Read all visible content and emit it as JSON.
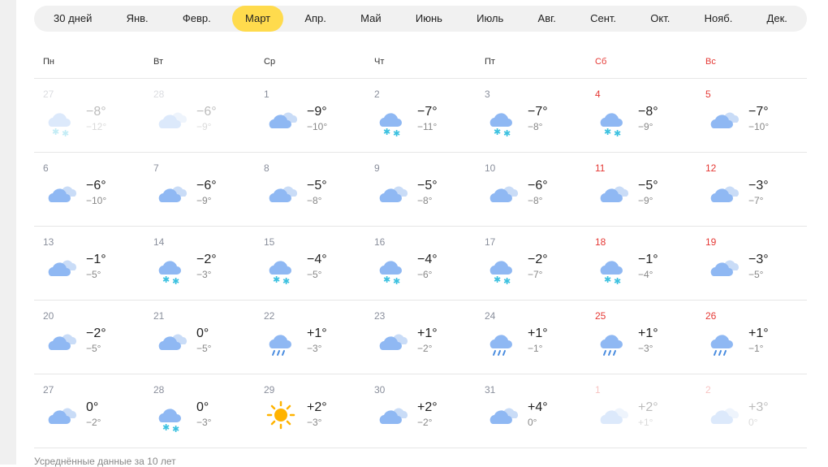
{
  "tabs": [
    "30 дней",
    "Янв.",
    "Февр.",
    "Март",
    "Апр.",
    "Май",
    "Июнь",
    "Июль",
    "Авг.",
    "Сент.",
    "Окт.",
    "Нояб.",
    "Дек."
  ],
  "active_tab": "Март",
  "colors": {
    "accent": "#ffdb4d",
    "weekend": "#e53935"
  },
  "weekdays": [
    "Пн",
    "Вт",
    "Ср",
    "Чт",
    "Пт",
    "Сб",
    "Вс"
  ],
  "weeks": [
    [
      {
        "d": "27",
        "i": "snow",
        "hi": "−8°",
        "lo": "−12°",
        "f": true
      },
      {
        "d": "28",
        "i": "cloudy",
        "hi": "−6°",
        "lo": "−9°",
        "f": true
      },
      {
        "d": "1",
        "i": "cloudy",
        "hi": "−9°",
        "lo": "−10°"
      },
      {
        "d": "2",
        "i": "snow",
        "hi": "−7°",
        "lo": "−11°"
      },
      {
        "d": "3",
        "i": "snow",
        "hi": "−7°",
        "lo": "−8°"
      },
      {
        "d": "4",
        "i": "snow",
        "hi": "−8°",
        "lo": "−9°"
      },
      {
        "d": "5",
        "i": "cloudy",
        "hi": "−7°",
        "lo": "−10°"
      }
    ],
    [
      {
        "d": "6",
        "i": "cloudy",
        "hi": "−6°",
        "lo": "−10°"
      },
      {
        "d": "7",
        "i": "cloudy",
        "hi": "−6°",
        "lo": "−9°"
      },
      {
        "d": "8",
        "i": "cloudy",
        "hi": "−5°",
        "lo": "−8°"
      },
      {
        "d": "9",
        "i": "cloudy",
        "hi": "−5°",
        "lo": "−8°"
      },
      {
        "d": "10",
        "i": "cloudy",
        "hi": "−6°",
        "lo": "−8°"
      },
      {
        "d": "11",
        "i": "cloudy",
        "hi": "−5°",
        "lo": "−9°"
      },
      {
        "d": "12",
        "i": "cloudy",
        "hi": "−3°",
        "lo": "−7°"
      }
    ],
    [
      {
        "d": "13",
        "i": "cloudy",
        "hi": "−1°",
        "lo": "−5°"
      },
      {
        "d": "14",
        "i": "snow",
        "hi": "−2°",
        "lo": "−3°"
      },
      {
        "d": "15",
        "i": "snow",
        "hi": "−4°",
        "lo": "−5°"
      },
      {
        "d": "16",
        "i": "snow",
        "hi": "−4°",
        "lo": "−6°"
      },
      {
        "d": "17",
        "i": "snow",
        "hi": "−2°",
        "lo": "−7°"
      },
      {
        "d": "18",
        "i": "snow",
        "hi": "−1°",
        "lo": "−4°"
      },
      {
        "d": "19",
        "i": "cloudy",
        "hi": "−3°",
        "lo": "−5°"
      }
    ],
    [
      {
        "d": "20",
        "i": "cloudy",
        "hi": "−2°",
        "lo": "−5°"
      },
      {
        "d": "21",
        "i": "cloudy",
        "hi": "0°",
        "lo": "−5°"
      },
      {
        "d": "22",
        "i": "rain",
        "hi": "+1°",
        "lo": "−3°"
      },
      {
        "d": "23",
        "i": "cloudy",
        "hi": "+1°",
        "lo": "−2°"
      },
      {
        "d": "24",
        "i": "rain",
        "hi": "+1°",
        "lo": "−1°"
      },
      {
        "d": "25",
        "i": "rain",
        "hi": "+1°",
        "lo": "−3°"
      },
      {
        "d": "26",
        "i": "rain",
        "hi": "+1°",
        "lo": "−1°"
      }
    ],
    [
      {
        "d": "27",
        "i": "cloudy",
        "hi": "0°",
        "lo": "−2°"
      },
      {
        "d": "28",
        "i": "snow",
        "hi": "0°",
        "lo": "−3°"
      },
      {
        "d": "29",
        "i": "sun",
        "hi": "+2°",
        "lo": "−3°"
      },
      {
        "d": "30",
        "i": "cloudy",
        "hi": "+2°",
        "lo": "−2°"
      },
      {
        "d": "31",
        "i": "cloudy",
        "hi": "+4°",
        "lo": "0°"
      },
      {
        "d": "1",
        "i": "cloudy",
        "hi": "+2°",
        "lo": "+1°",
        "f": true
      },
      {
        "d": "2",
        "i": "cloudy",
        "hi": "+3°",
        "lo": "0°",
        "f": true
      }
    ]
  ],
  "footer": "Усреднённые данные за 10 лет"
}
